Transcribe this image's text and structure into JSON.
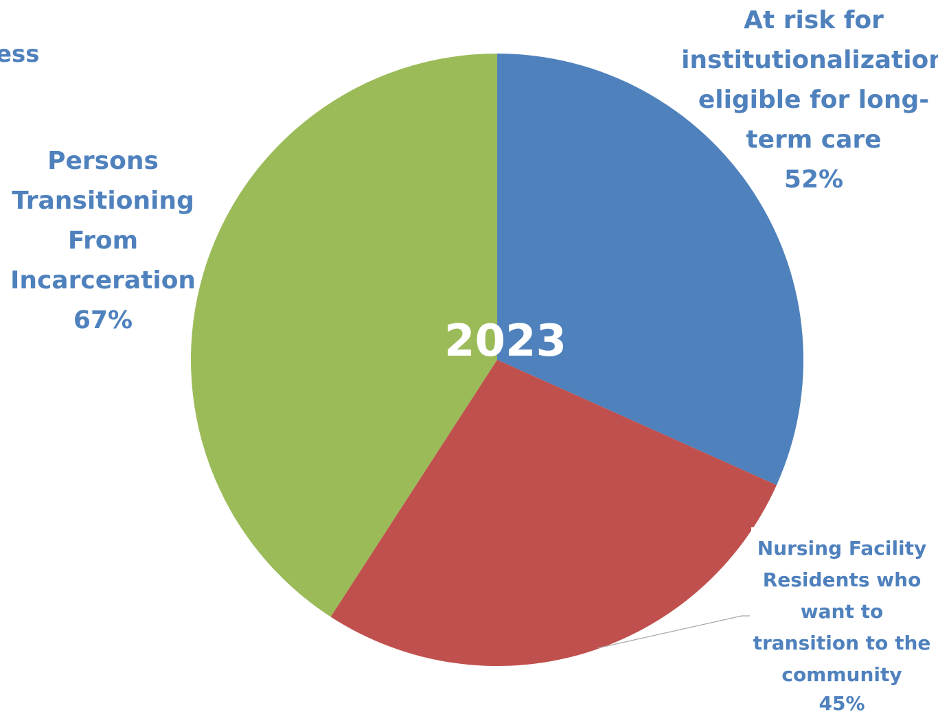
{
  "chart_data": {
    "type": "pie",
    "title": "2023",
    "cut_off_label_fragment": "ess",
    "slices": [
      {
        "label_lines": [
          "At risk for",
          "institutionalization",
          "eligible for long-",
          "term care"
        ],
        "percent_label": "52%",
        "value": 52,
        "color": "#4f81bd"
      },
      {
        "label_lines": [
          "Nursing Facility",
          "Residents who",
          "want to",
          "transition to the",
          "community"
        ],
        "percent_label": "45%",
        "value": 45,
        "color": "#c0504d"
      },
      {
        "label_lines": [
          "Persons",
          "Transitioning",
          "From",
          "Incarceration"
        ],
        "percent_label": "67%",
        "value": 67,
        "color": "#9bbb59"
      }
    ],
    "label_color": "#4f81bd",
    "legend": "none"
  }
}
